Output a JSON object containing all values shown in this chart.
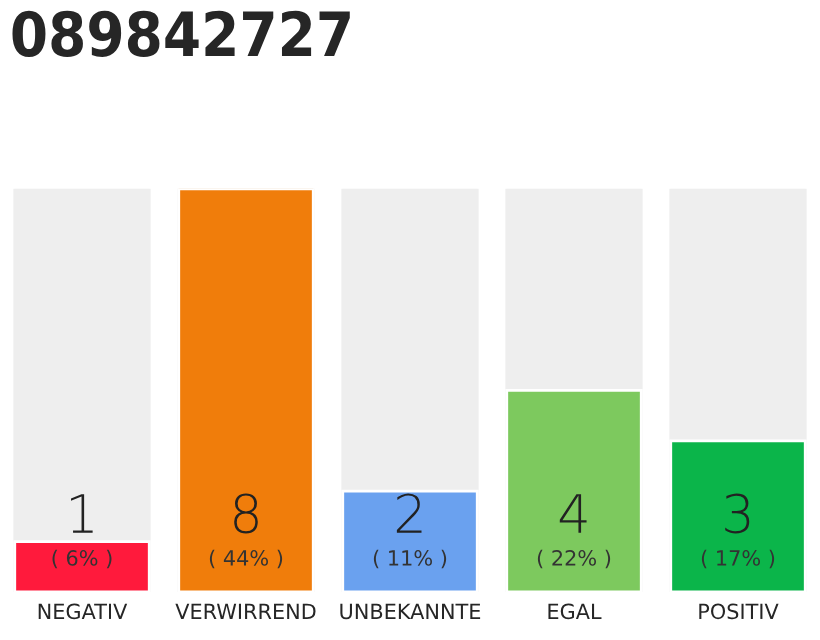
{
  "chart_data": {
    "type": "bar",
    "title": "089842727",
    "categories": [
      "NEGATIV",
      "VERWIRREND",
      "UNBEKANNTE",
      "EGAL",
      "POSITIV"
    ],
    "values": [
      1,
      8,
      2,
      4,
      3
    ],
    "colors": [
      "#ff1a3c",
      "#f07d0b",
      "#6aa1ef",
      "#7dc95e",
      "#0bb54a"
    ],
    "data_labels": true,
    "annotations": [
      "( 6% )",
      "( 44% )",
      "( 11% )",
      "( 22% )",
      "( 17% )"
    ],
    "grid": false,
    "legend": false
  }
}
